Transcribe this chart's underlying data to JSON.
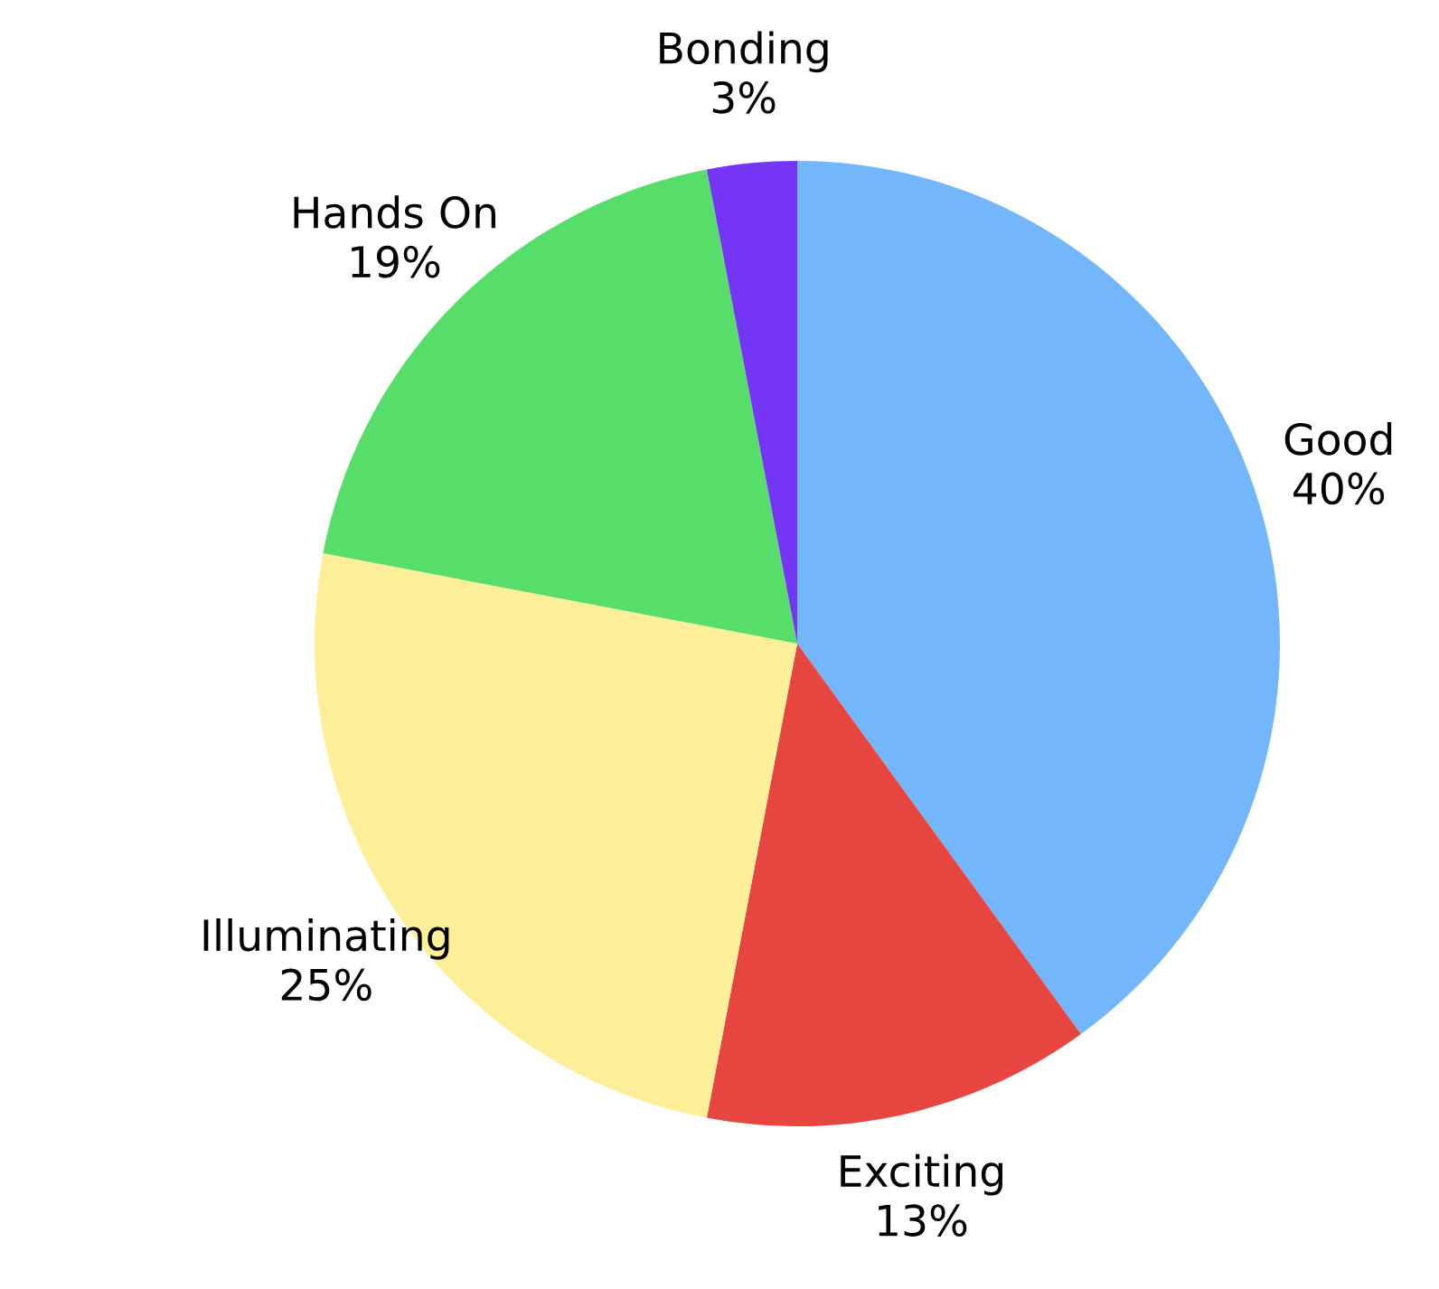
{
  "chart_data": {
    "type": "pie",
    "categories": [
      "Good",
      "Exciting",
      "Illuminating",
      "Hands On",
      "Bonding"
    ],
    "values": [
      40,
      13,
      25,
      19,
      3
    ],
    "value_labels": [
      "40%",
      "13%",
      "25%",
      "19%",
      "3%"
    ],
    "colors": [
      "#74b6fb",
      "#e64540",
      "#fdef9a",
      "#57de6a",
      "#7435f5"
    ]
  }
}
